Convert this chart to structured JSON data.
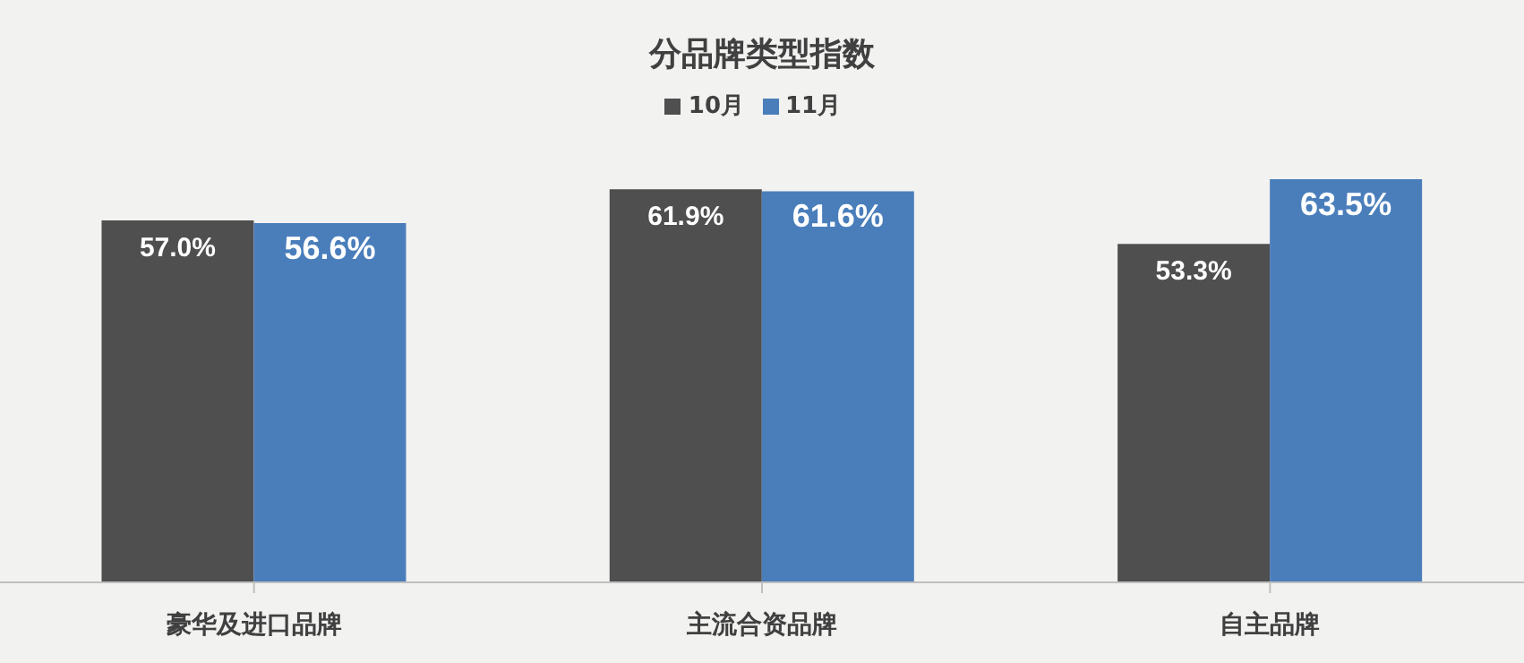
{
  "chart_data": {
    "type": "bar",
    "title": "分品牌类型指数",
    "categories": [
      "豪华及进口品牌",
      "主流合资品牌",
      "自主品牌"
    ],
    "series": [
      {
        "name": "10月",
        "color": "#4f4f4f",
        "values": [
          57.0,
          61.9,
          53.3
        ],
        "value_labels": [
          "57.0%",
          "61.9%",
          "53.3%"
        ]
      },
      {
        "name": "11月",
        "color": "#4a7ebb",
        "values": [
          56.6,
          61.6,
          63.5
        ],
        "value_labels": [
          "56.6%",
          "61.6%",
          "63.5%"
        ]
      }
    ],
    "legend": "top",
    "grid": false
  }
}
